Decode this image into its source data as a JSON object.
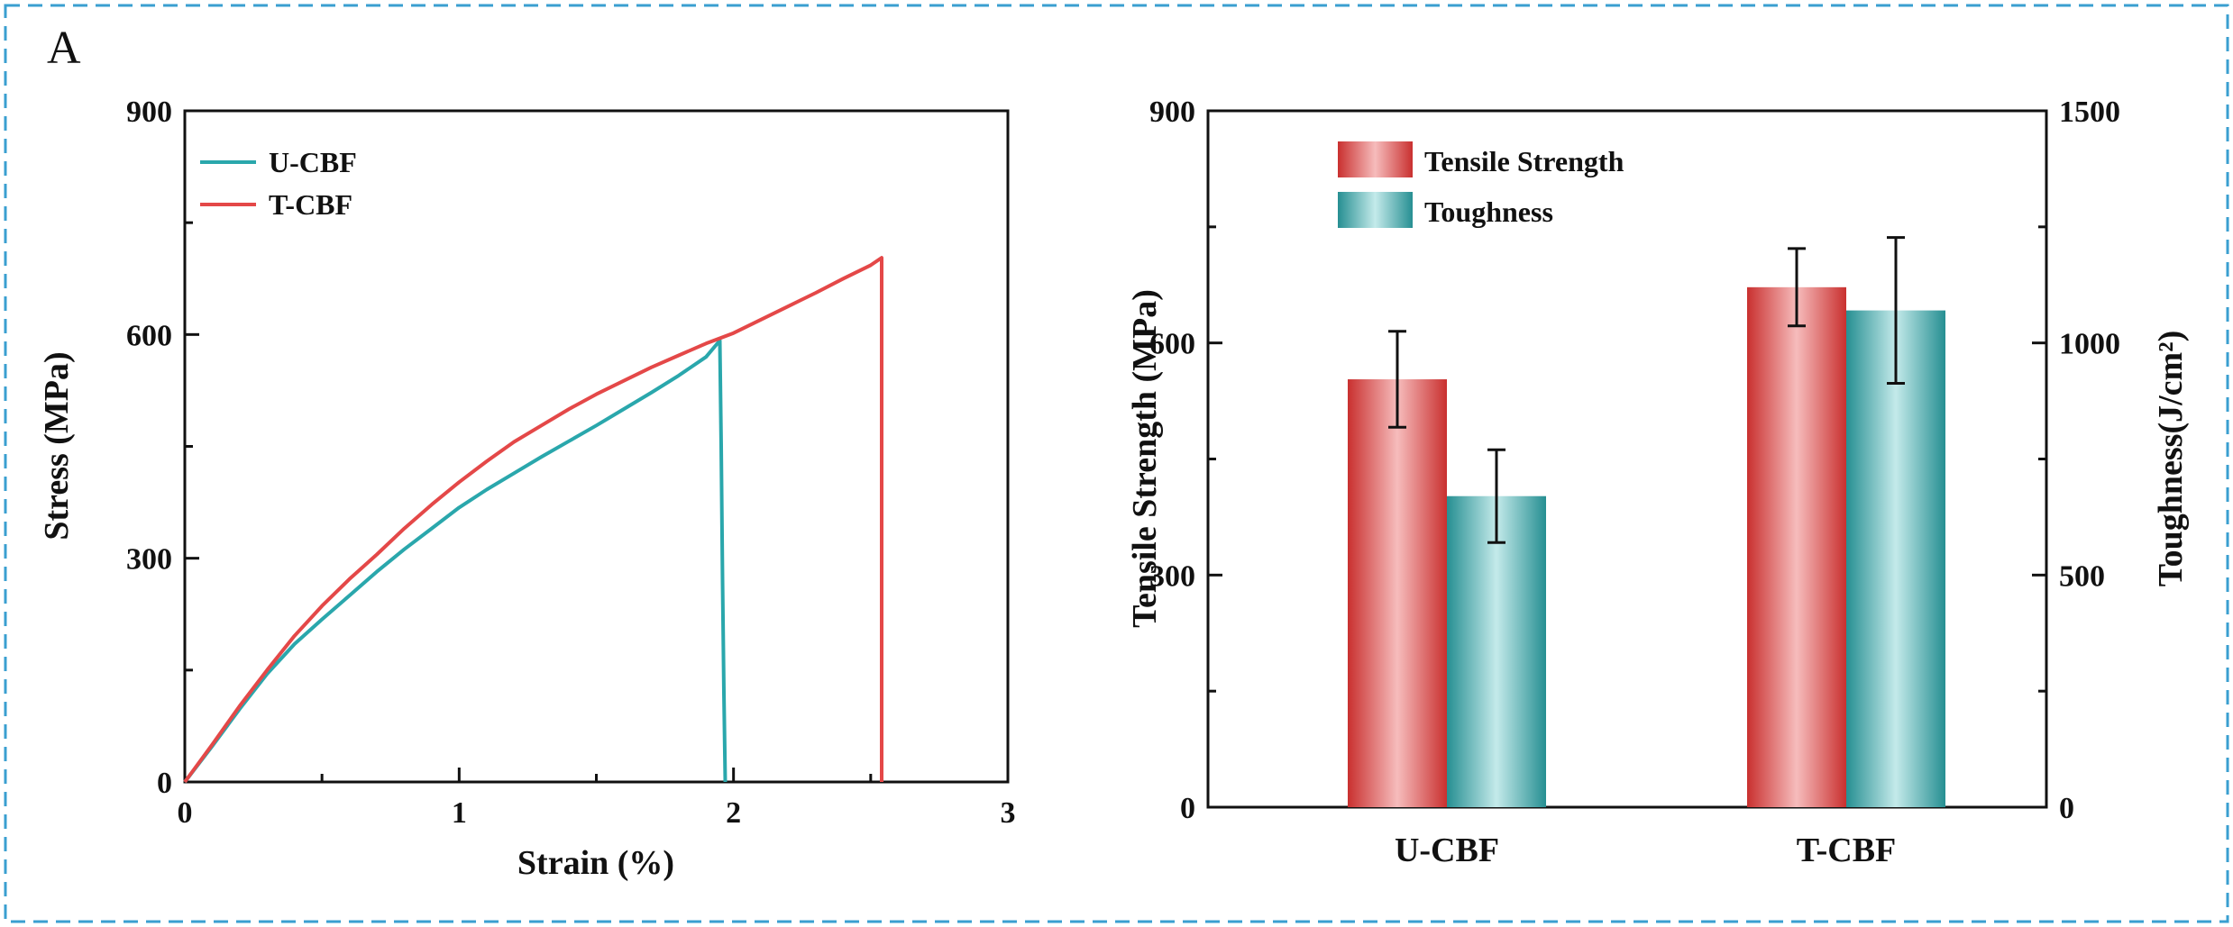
{
  "panel_label": "A",
  "colors": {
    "teal": "#2aa7ac",
    "red": "#e44848",
    "frame_dash": "#3a9fd0",
    "axis": "#111111"
  },
  "chart_data": [
    {
      "type": "line",
      "title": "",
      "xlabel": "Strain (%)",
      "ylabel": "Stress (MPa)",
      "xlim": [
        0,
        3
      ],
      "ylim": [
        0,
        900
      ],
      "xticks": [
        "0",
        "1",
        "2",
        "3"
      ],
      "yticks": [
        "0",
        "300",
        "600",
        "900"
      ],
      "legend_position": "top-left",
      "series": [
        {
          "name": "U-CBF",
          "color": "#2aa7ac",
          "points": [
            [
              0,
              0
            ],
            [
              0.1,
              48
            ],
            [
              0.2,
              98
            ],
            [
              0.3,
              145
            ],
            [
              0.4,
              185
            ],
            [
              0.5,
              218
            ],
            [
              0.6,
              250
            ],
            [
              0.7,
              282
            ],
            [
              0.8,
              312
            ],
            [
              0.9,
              340
            ],
            [
              1.0,
              368
            ],
            [
              1.1,
              392
            ],
            [
              1.2,
              414
            ],
            [
              1.3,
              436
            ],
            [
              1.4,
              457
            ],
            [
              1.5,
              478
            ],
            [
              1.6,
              500
            ],
            [
              1.7,
              522
            ],
            [
              1.8,
              545
            ],
            [
              1.9,
              570
            ],
            [
              1.95,
              592
            ],
            [
              1.955,
              450
            ],
            [
              1.96,
              270
            ],
            [
              1.965,
              120
            ],
            [
              1.97,
              0
            ]
          ]
        },
        {
          "name": "T-CBF",
          "color": "#e44848",
          "points": [
            [
              0,
              0
            ],
            [
              0.1,
              50
            ],
            [
              0.2,
              102
            ],
            [
              0.3,
              150
            ],
            [
              0.4,
              196
            ],
            [
              0.5,
              236
            ],
            [
              0.6,
              272
            ],
            [
              0.7,
              305
            ],
            [
              0.8,
              340
            ],
            [
              0.9,
              372
            ],
            [
              1.0,
              402
            ],
            [
              1.1,
              430
            ],
            [
              1.2,
              456
            ],
            [
              1.3,
              478
            ],
            [
              1.4,
              500
            ],
            [
              1.5,
              520
            ],
            [
              1.6,
              538
            ],
            [
              1.7,
              556
            ],
            [
              1.8,
              572
            ],
            [
              1.9,
              588
            ],
            [
              2.0,
              602
            ],
            [
              2.1,
              620
            ],
            [
              2.2,
              638
            ],
            [
              2.3,
              656
            ],
            [
              2.4,
              675
            ],
            [
              2.5,
              693
            ],
            [
              2.54,
              703
            ],
            [
              2.54,
              0
            ]
          ]
        }
      ]
    },
    {
      "type": "bar",
      "title": "",
      "categories": [
        "U-CBF",
        "T-CBF"
      ],
      "ylabel": "Tensile Strength (MPa)",
      "y2label": "Toughness(J/cm²)",
      "ylim": [
        0,
        900
      ],
      "y2lim": [
        0,
        1500
      ],
      "yticks": [
        "0",
        "300",
        "600",
        "900"
      ],
      "y2ticks": [
        "0",
        "500",
        "1000",
        "1500"
      ],
      "legend_position": "top-left",
      "series": [
        {
          "name": "Tensile Strength",
          "axis": "left",
          "color": "#e44848",
          "values": [
            553,
            672
          ],
          "errors": [
            62,
            50
          ]
        },
        {
          "name": "Toughness",
          "axis": "right",
          "color": "#2aa7ac",
          "values": [
            670,
            1070
          ],
          "errors": [
            100,
            157
          ]
        }
      ]
    }
  ]
}
